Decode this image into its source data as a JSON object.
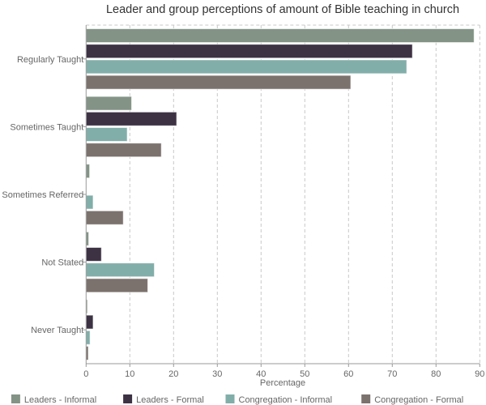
{
  "chart_data": {
    "type": "bar",
    "orientation": "horizontal",
    "title": "Leader and group perceptions of amount of Bible teaching in church",
    "xlabel": "Percentage",
    "ylabel": "",
    "xlim": [
      0,
      90
    ],
    "xticks": [
      0,
      10,
      20,
      30,
      40,
      50,
      60,
      70,
      80,
      90
    ],
    "grid": "vertical dashed",
    "legend_position": "bottom",
    "categories": [
      "Regularly Taught",
      "Sometimes Taught",
      "Sometimes Referred",
      "Not Stated",
      "Never Taught"
    ],
    "series": [
      {
        "name": "Leaders - Informal",
        "color": "#839386",
        "values": [
          88.7,
          10.4,
          0.8,
          0.6,
          0.3
        ]
      },
      {
        "name": "Leaders - Formal",
        "color": "#3d3243",
        "values": [
          74.6,
          20.7,
          0,
          3.5,
          1.6
        ]
      },
      {
        "name": "Congregation - Informal",
        "color": "#82aeaa",
        "values": [
          73.3,
          9.4,
          1.6,
          15.6,
          0.9
        ]
      },
      {
        "name": "Congregation - Formal",
        "color": "#7b716d",
        "values": [
          60.5,
          17.2,
          8.5,
          14.1,
          0.5
        ]
      }
    ]
  }
}
